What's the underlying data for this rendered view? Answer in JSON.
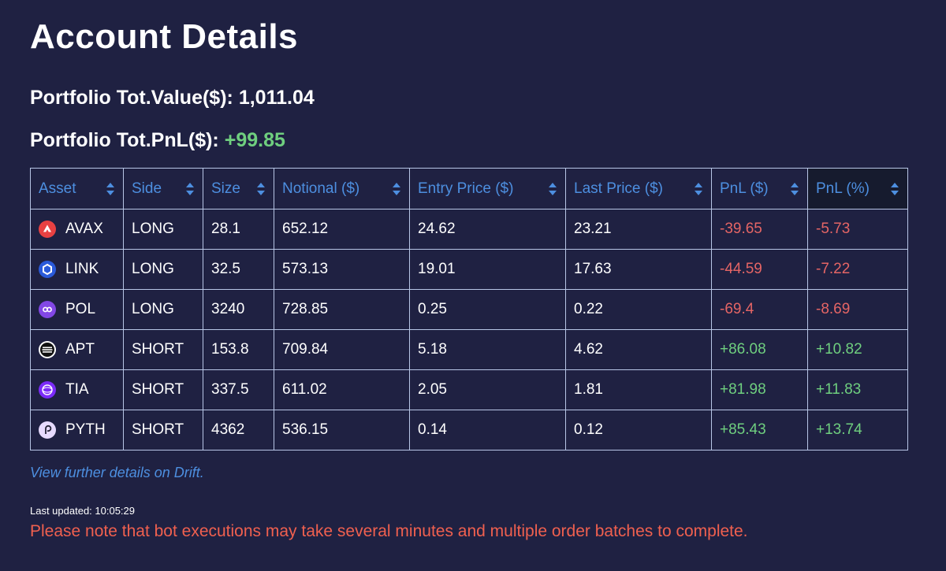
{
  "header": {
    "title": "Account Details"
  },
  "portfolio": {
    "total_value_label": "Portfolio Tot.Value($):",
    "total_value": "1,011.04",
    "total_pnl_label": "Portfolio Tot.PnL($):",
    "total_pnl": "+99.85",
    "pnl_color": "#6fcf7f"
  },
  "table": {
    "columns": [
      "Asset",
      "Side",
      "Size",
      "Notional ($)",
      "Entry Price ($)",
      "Last Price ($)",
      "PnL ($)",
      "PnL (%)"
    ],
    "sort_icon": "sort-updown-icon",
    "active_column": "PnL (%)",
    "rows": [
      {
        "asset": "AVAX",
        "icon": "avax-icon",
        "side": "LONG",
        "size": "28.1",
        "notional": "652.12",
        "entry": "24.62",
        "last": "23.21",
        "pnl": "-39.65",
        "pnl_pct": "-5.73"
      },
      {
        "asset": "LINK",
        "icon": "link-icon",
        "side": "LONG",
        "size": "32.5",
        "notional": "573.13",
        "entry": "19.01",
        "last": "17.63",
        "pnl": "-44.59",
        "pnl_pct": "-7.22"
      },
      {
        "asset": "POL",
        "icon": "pol-icon",
        "side": "LONG",
        "size": "3240",
        "notional": "728.85",
        "entry": "0.25",
        "last": "0.22",
        "pnl": "-69.4",
        "pnl_pct": "-8.69"
      },
      {
        "asset": "APT",
        "icon": "apt-icon",
        "side": "SHORT",
        "size": "153.8",
        "notional": "709.84",
        "entry": "5.18",
        "last": "4.62",
        "pnl": "+86.08",
        "pnl_pct": "+10.82"
      },
      {
        "asset": "TIA",
        "icon": "tia-icon",
        "side": "SHORT",
        "size": "337.5",
        "notional": "611.02",
        "entry": "2.05",
        "last": "1.81",
        "pnl": "+81.98",
        "pnl_pct": "+11.83"
      },
      {
        "asset": "PYTH",
        "icon": "pyth-icon",
        "side": "SHORT",
        "size": "4362",
        "notional": "536.15",
        "entry": "0.14",
        "last": "0.12",
        "pnl": "+85.43",
        "pnl_pct": "+13.74"
      }
    ]
  },
  "footer": {
    "drift_link": "View further details on Drift.",
    "last_updated": "Last updated: 10:05:29",
    "notice": "Please note that bot executions may take several minutes and multiple order batches to complete."
  },
  "colors": {
    "background": "#1f2142",
    "header_text": "#4d8fe0",
    "negative": "#e56565",
    "positive": "#6fcf7f",
    "notice": "#f0604f",
    "border": "#b8c6e6"
  }
}
